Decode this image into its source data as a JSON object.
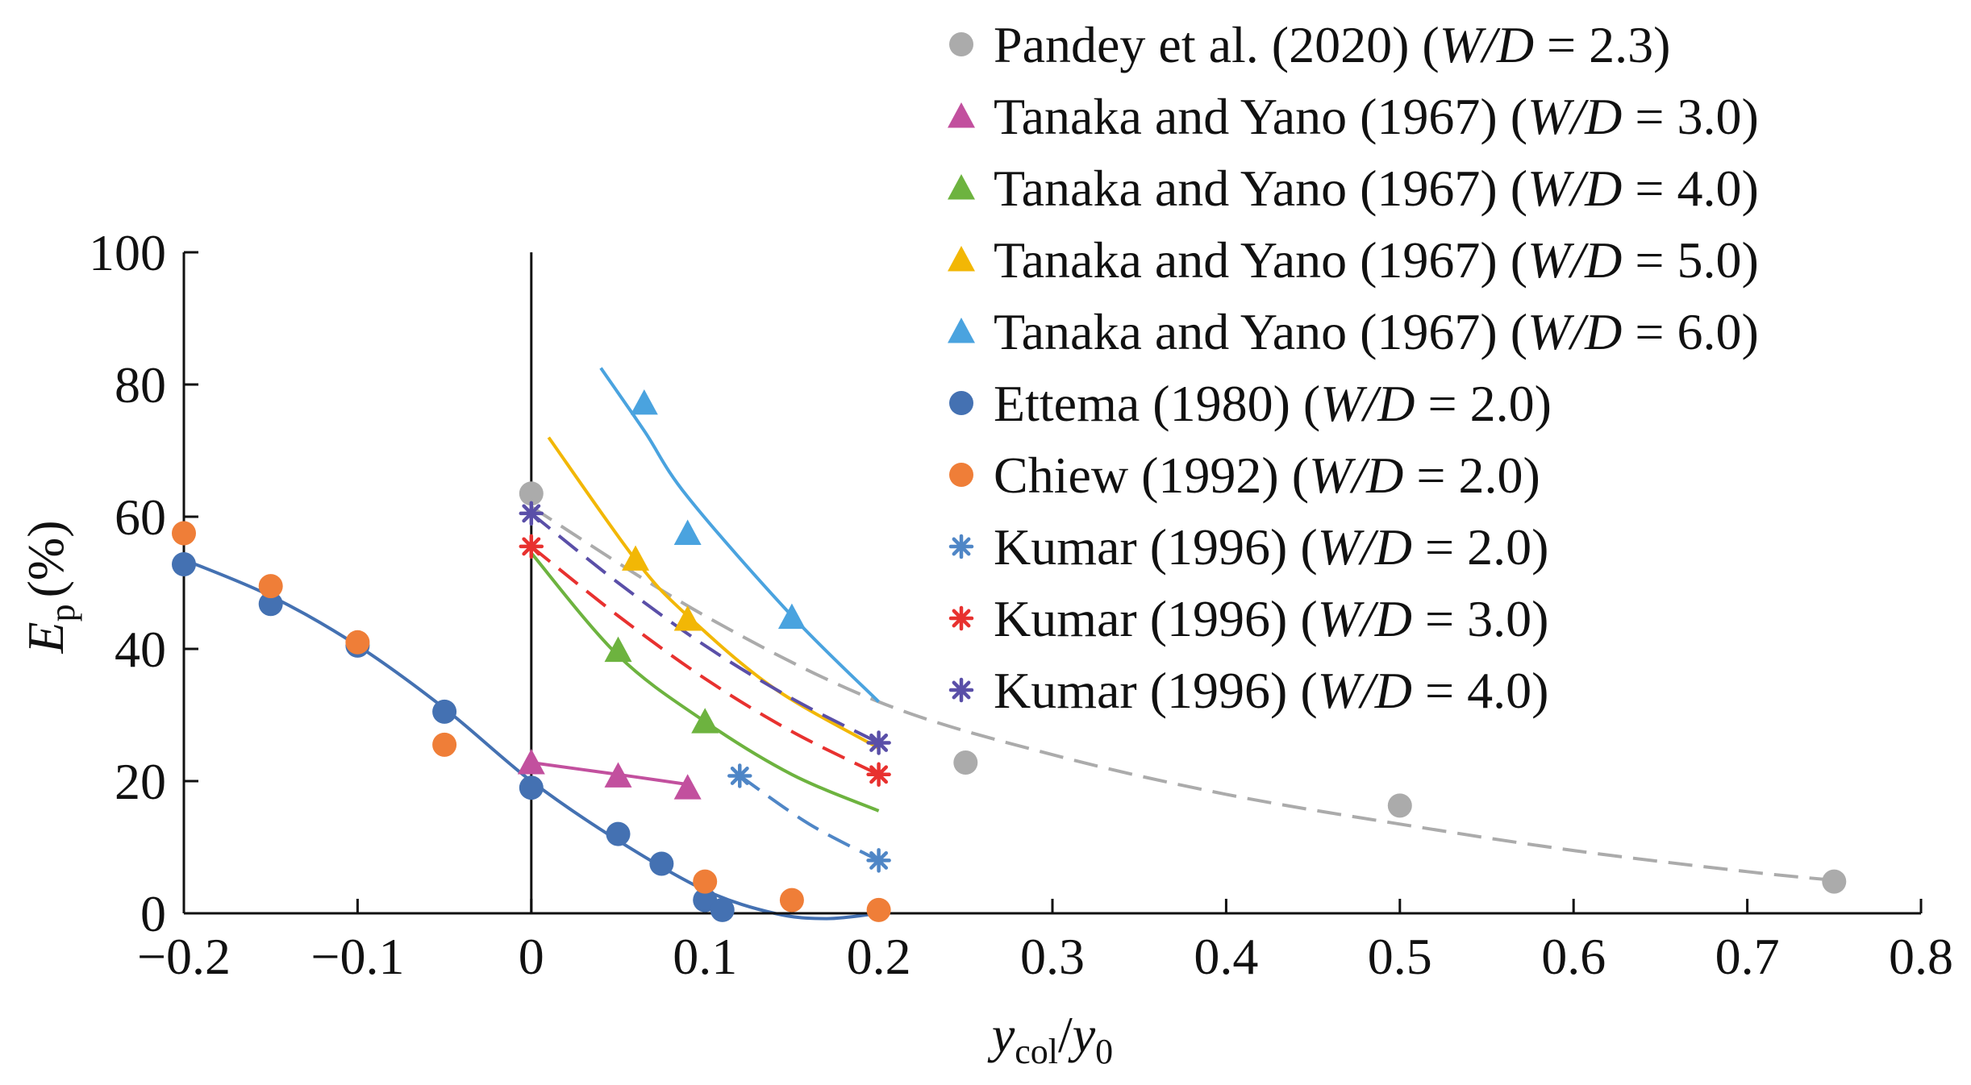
{
  "chart_data": {
    "type": "scatter",
    "title": "",
    "xlabel": {
      "main": "y",
      "sub": "col",
      "slash": "/",
      "main2": "y",
      "sub2": "0"
    },
    "ylabel": {
      "main": "E",
      "sub": "p",
      "unit": "(%)"
    },
    "xlim": [
      -0.2,
      0.8
    ],
    "ylim": [
      0,
      100
    ],
    "x_ticks": [
      -0.2,
      -0.1,
      0,
      0.1,
      0.2,
      0.3,
      0.4,
      0.5,
      0.6,
      0.7,
      0.8
    ],
    "x_tick_labels": [
      "−0.2",
      "−0.1",
      "0",
      "0.1",
      "0.2",
      "0.3",
      "0.4",
      "0.5",
      "0.6",
      "0.7",
      "0.8"
    ],
    "y_ticks": [
      0,
      20,
      40,
      60,
      80,
      100
    ],
    "y_tick_labels": [
      "0",
      "20",
      "40",
      "60",
      "80",
      "100"
    ],
    "grid": false,
    "reference_line_x": 0,
    "legend_position": "top-right",
    "series": [
      {
        "name": "Pandey et al. (2020)",
        "wd": "(W/D = 2.3)",
        "marker": "circle",
        "color": "#ababab",
        "points": [
          [
            0,
            63.5
          ],
          [
            0.25,
            22.8
          ],
          [
            0.5,
            16.3
          ],
          [
            0.75,
            4.8
          ]
        ],
        "fit": {
          "style": "dashed",
          "points": [
            [
              0,
              61.5
            ],
            [
              0.1,
              45
            ],
            [
              0.2,
              32
            ],
            [
              0.3,
              24
            ],
            [
              0.4,
              18
            ],
            [
              0.5,
              13.5
            ],
            [
              0.6,
              9.5
            ],
            [
              0.7,
              6.3
            ],
            [
              0.75,
              5
            ]
          ]
        }
      },
      {
        "name": "Tanaka and Yano (1967)",
        "wd": "(W/D = 3.0)",
        "marker": "triangle",
        "color": "#c2509e",
        "points": [
          [
            0,
            22.8
          ],
          [
            0.05,
            20.8
          ],
          [
            0.09,
            19
          ]
        ],
        "fit": {
          "style": "solid",
          "points": [
            [
              0,
              22.8
            ],
            [
              0.05,
              21
            ],
            [
              0.09,
              19.5
            ]
          ]
        }
      },
      {
        "name": "Tanaka and Yano (1967)",
        "wd": "(W/D = 4.0)",
        "marker": "triangle",
        "color": "#6db33f",
        "points": [
          [
            0.05,
            39.8
          ],
          [
            0.1,
            29
          ]
        ],
        "fit": {
          "style": "solid",
          "points": [
            [
              0,
              54.5
            ],
            [
              0.05,
              39
            ],
            [
              0.1,
              29
            ],
            [
              0.15,
              21
            ],
            [
              0.2,
              15.5
            ]
          ]
        }
      },
      {
        "name": "Tanaka and Yano (1967)",
        "wd": "(W/D = 5.0)",
        "marker": "triangle",
        "color": "#f2b705",
        "points": [
          [
            0.06,
            53.6
          ],
          [
            0.09,
            44.5
          ]
        ],
        "fit": {
          "style": "solid",
          "points": [
            [
              0.01,
              72
            ],
            [
              0.06,
              53.5
            ],
            [
              0.09,
              45
            ],
            [
              0.14,
              34
            ],
            [
              0.2,
              25
            ]
          ]
        }
      },
      {
        "name": "Tanaka and Yano (1967)",
        "wd": "(W/D = 6.0)",
        "marker": "triangle",
        "color": "#4aa3df",
        "points": [
          [
            0.065,
            77.2
          ],
          [
            0.09,
            57.5
          ],
          [
            0.15,
            44.8
          ]
        ],
        "fit": {
          "style": "solid",
          "points": [
            [
              0.04,
              82.5
            ],
            [
              0.065,
              73
            ],
            [
              0.09,
              63
            ],
            [
              0.15,
              45
            ],
            [
              0.2,
              32
            ]
          ]
        }
      },
      {
        "name": "Ettema (1980)",
        "wd": "(W/D = 2.0)",
        "marker": "circle",
        "color": "#4471b2",
        "points": [
          [
            -0.2,
            52.8
          ],
          [
            -0.15,
            46.8
          ],
          [
            -0.1,
            40.5
          ],
          [
            -0.05,
            30.5
          ],
          [
            0,
            19
          ],
          [
            0.05,
            12
          ],
          [
            0.075,
            7.5
          ],
          [
            0.1,
            2
          ],
          [
            0.11,
            0.5
          ]
        ],
        "fit": {
          "style": "solid",
          "points": [
            [
              -0.2,
              53.5
            ],
            [
              -0.15,
              48
            ],
            [
              -0.1,
              40.5
            ],
            [
              -0.05,
              31
            ],
            [
              0,
              20
            ],
            [
              0.05,
              11
            ],
            [
              0.1,
              3.5
            ],
            [
              0.14,
              0
            ],
            [
              0.17,
              -0.8
            ],
            [
              0.2,
              0
            ]
          ]
        }
      },
      {
        "name": "Chiew (1992)",
        "wd": "(W/D = 2.0)",
        "marker": "circle",
        "color": "#ef7e38",
        "points": [
          [
            -0.2,
            57.5
          ],
          [
            -0.15,
            49.5
          ],
          [
            -0.1,
            41
          ],
          [
            -0.05,
            25.5
          ],
          [
            0.1,
            4.8
          ],
          [
            0.15,
            2
          ],
          [
            0.2,
            0.5
          ]
        ],
        "fit": null
      },
      {
        "name": "Kumar (1996)",
        "wd": "(W/D = 2.0)",
        "marker": "star",
        "color": "#4f86c6",
        "points": [
          [
            0.12,
            20.8
          ],
          [
            0.2,
            8
          ]
        ],
        "fit": {
          "style": "dashed",
          "points": [
            [
              0.12,
              20.8
            ],
            [
              0.16,
              13.5
            ],
            [
              0.2,
              8
            ]
          ]
        }
      },
      {
        "name": "Kumar (1996)",
        "wd": "(W/D = 3.0)",
        "marker": "star",
        "color": "#e8312f",
        "points": [
          [
            0,
            55.5
          ],
          [
            0.2,
            21
          ]
        ],
        "fit": {
          "style": "dashed",
          "points": [
            [
              0,
              55.5
            ],
            [
              0.05,
              45
            ],
            [
              0.1,
              35.5
            ],
            [
              0.15,
              27.5
            ],
            [
              0.2,
              21
            ]
          ]
        }
      },
      {
        "name": "Kumar (1996)",
        "wd": "(W/D = 4.0)",
        "marker": "star",
        "color": "#5a4fa8",
        "points": [
          [
            0,
            60.5
          ],
          [
            0.2,
            25.8
          ]
        ],
        "fit": {
          "style": "dashed",
          "points": [
            [
              0,
              60.5
            ],
            [
              0.05,
              50
            ],
            [
              0.1,
              40.5
            ],
            [
              0.15,
              32.5
            ],
            [
              0.2,
              25.8
            ]
          ]
        }
      }
    ]
  }
}
